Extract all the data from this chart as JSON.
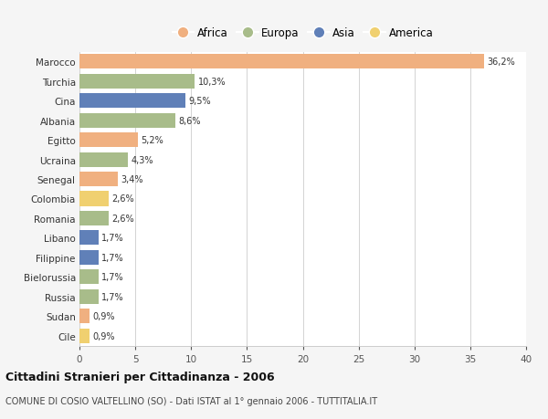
{
  "countries": [
    "Marocco",
    "Turchia",
    "Cina",
    "Albania",
    "Egitto",
    "Ucraina",
    "Senegal",
    "Colombia",
    "Romania",
    "Libano",
    "Filippine",
    "Bielorussia",
    "Russia",
    "Sudan",
    "Cile"
  ],
  "values": [
    36.2,
    10.3,
    9.5,
    8.6,
    5.2,
    4.3,
    3.4,
    2.6,
    2.6,
    1.7,
    1.7,
    1.7,
    1.7,
    0.9,
    0.9
  ],
  "labels": [
    "36,2%",
    "10,3%",
    "9,5%",
    "8,6%",
    "5,2%",
    "4,3%",
    "3,4%",
    "2,6%",
    "2,6%",
    "1,7%",
    "1,7%",
    "1,7%",
    "1,7%",
    "0,9%",
    "0,9%"
  ],
  "colors": [
    "#f0b080",
    "#a8bc8a",
    "#6080b8",
    "#a8bc8a",
    "#f0b080",
    "#a8bc8a",
    "#f0b080",
    "#f0d070",
    "#a8bc8a",
    "#6080b8",
    "#6080b8",
    "#a8bc8a",
    "#a8bc8a",
    "#f0b080",
    "#f0d070"
  ],
  "legend_labels": [
    "Africa",
    "Europa",
    "Asia",
    "America"
  ],
  "legend_colors": [
    "#f0b080",
    "#a8bc8a",
    "#6080b8",
    "#f0d070"
  ],
  "title": "Cittadini Stranieri per Cittadinanza - 2006",
  "subtitle": "COMUNE DI COSIO VALTELLINO (SO) - Dati ISTAT al 1° gennaio 2006 - TUTTITALIA.IT",
  "xlim": [
    0,
    40
  ],
  "xticks": [
    0,
    5,
    10,
    15,
    20,
    25,
    30,
    35,
    40
  ],
  "background_color": "#f5f5f5",
  "bar_background": "#ffffff"
}
